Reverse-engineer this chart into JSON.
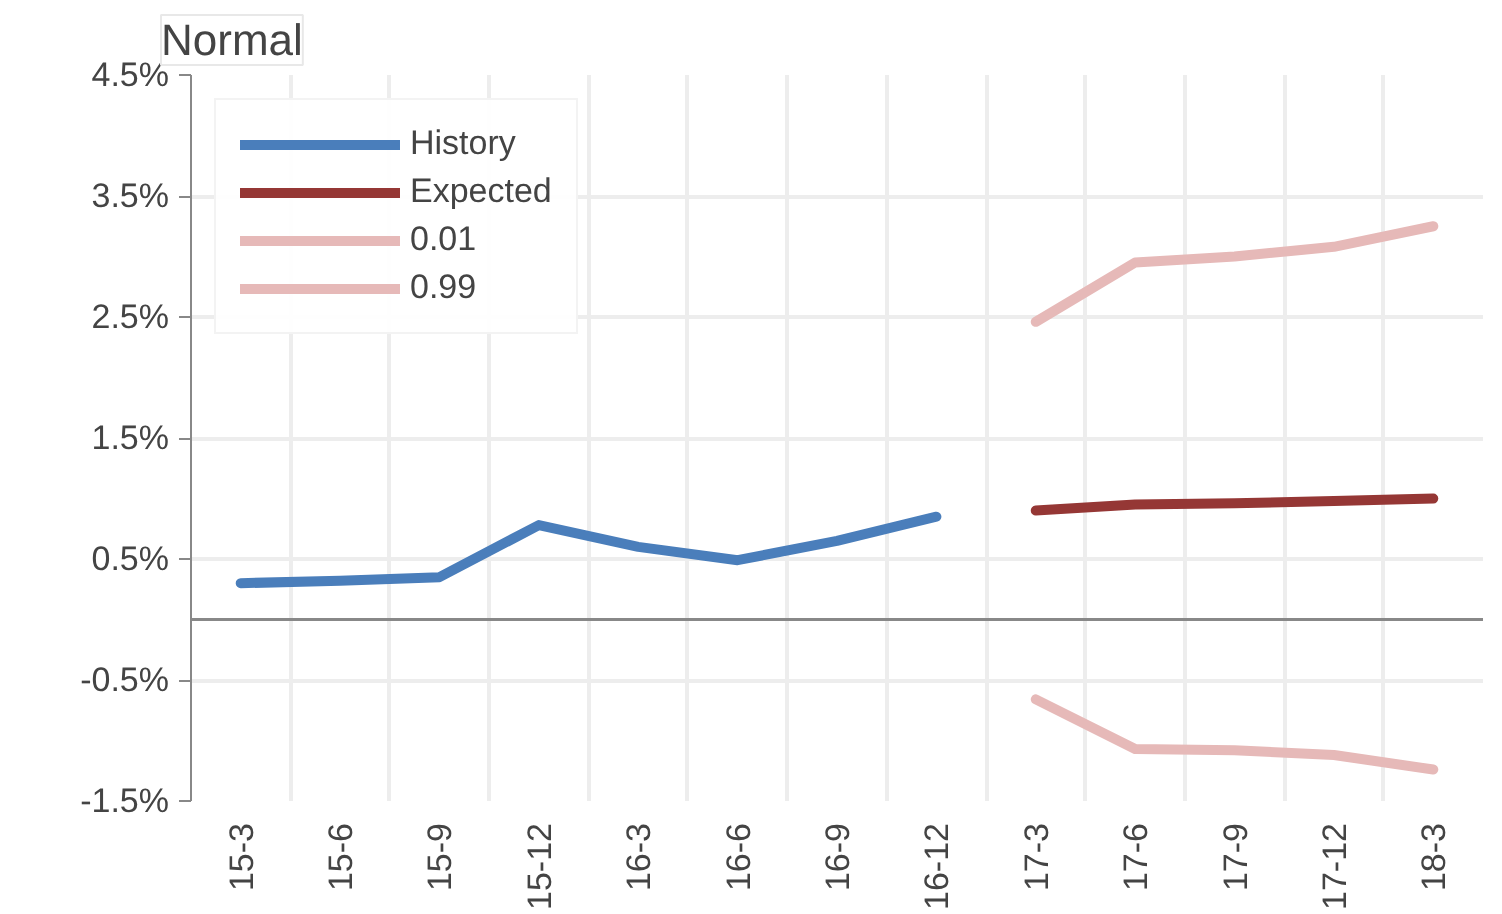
{
  "chart_data": {
    "type": "line",
    "title": "Normal",
    "categories": [
      "15-3",
      "15-6",
      "15-9",
      "15-12",
      "16-3",
      "16-6",
      "16-9",
      "16-12",
      "17-3",
      "17-6",
      "17-9",
      "17-12",
      "18-3"
    ],
    "series": [
      {
        "name": "History",
        "color": "#4a7ebb",
        "values": [
          0.3,
          0.32,
          0.35,
          0.78,
          0.6,
          0.49,
          0.65,
          0.85,
          null,
          null,
          null,
          null,
          null
        ]
      },
      {
        "name": "Expected",
        "color": "#953735",
        "values": [
          null,
          null,
          null,
          null,
          null,
          null,
          null,
          null,
          0.9,
          0.95,
          0.96,
          0.98,
          1.0
        ]
      },
      {
        "name": "0.01",
        "color": "#e6b9b8",
        "values": [
          null,
          null,
          null,
          null,
          null,
          null,
          null,
          null,
          -0.66,
          -1.07,
          -1.08,
          -1.12,
          -1.24
        ]
      },
      {
        "name": "0.99",
        "color": "#e6b9b8",
        "values": [
          null,
          null,
          null,
          null,
          null,
          null,
          null,
          null,
          2.46,
          2.95,
          3.0,
          3.08,
          3.25
        ]
      }
    ],
    "ylim": [
      -1.5,
      4.5
    ],
    "yticks": [
      {
        "value": -1.5,
        "label": "-1.5%"
      },
      {
        "value": -0.5,
        "label": "-0.5%"
      },
      {
        "value": 0.5,
        "label": "0.5%"
      },
      {
        "value": 1.5,
        "label": "1.5%"
      },
      {
        "value": 2.5,
        "label": "2.5%"
      },
      {
        "value": 3.5,
        "label": "3.5%"
      },
      {
        "value": 4.5,
        "label": "4.5%"
      }
    ],
    "grid": true,
    "legend": "top left",
    "line_style": "solid",
    "marker": "none"
  }
}
